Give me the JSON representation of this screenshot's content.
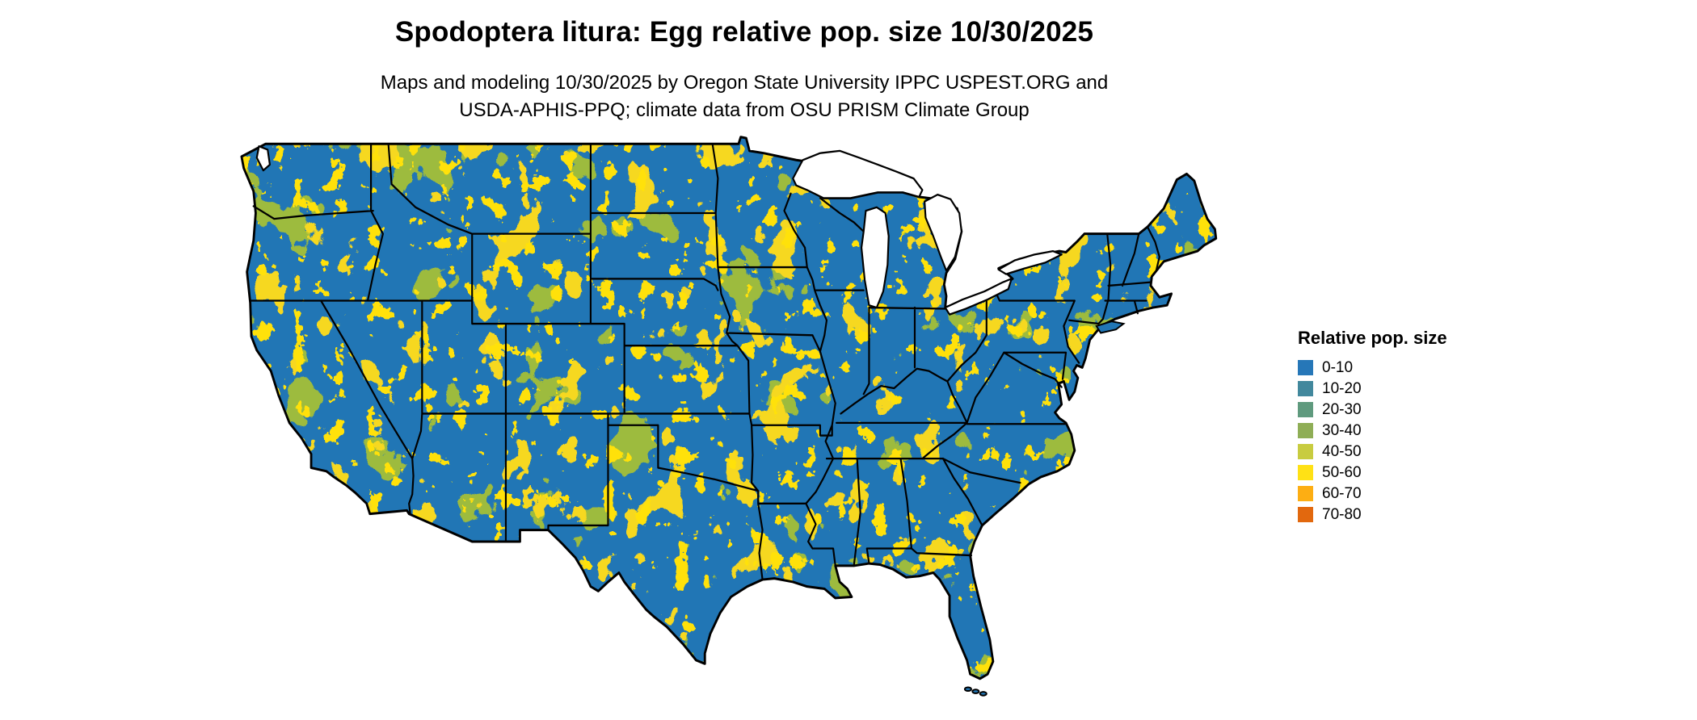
{
  "header": {
    "title": "Spodoptera litura: Egg relative pop. size 10/30/2025",
    "subtitle_line1": "Maps and modeling 10/30/2025 by Oregon State University IPPC USPEST.ORG and",
    "subtitle_line2": "USDA-APHIS-PPQ; climate data from OSU PRISM Climate Group"
  },
  "map": {
    "description": "Contiguous United States raster map of relative population size",
    "land_color": "#2176b5",
    "water_color": "#ffffff",
    "border_color": "#000000",
    "speckle_green": "#9dbb3e",
    "speckle_yellow": "#ffe10a",
    "speckle_yellow2": "#f6d820",
    "speckle_orange": "#f59b0c"
  },
  "legend": {
    "title": "Relative pop. size",
    "items": [
      {
        "label": "0-10",
        "color": "#2677b8"
      },
      {
        "label": "10-20",
        "color": "#42889d"
      },
      {
        "label": "20-30",
        "color": "#5f9a7e"
      },
      {
        "label": "30-40",
        "color": "#8fae56"
      },
      {
        "label": "40-50",
        "color": "#c8cc40"
      },
      {
        "label": "50-60",
        "color": "#ffe115"
      },
      {
        "label": "60-70",
        "color": "#fdae13"
      },
      {
        "label": "70-80",
        "color": "#e2680e"
      }
    ]
  }
}
